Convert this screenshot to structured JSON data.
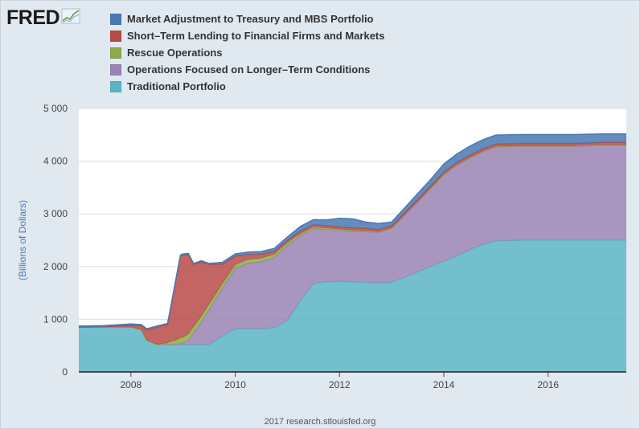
{
  "header": {
    "logo_text": "FRED",
    "logo_icon": "trend-line-icon"
  },
  "colors": {
    "background": "#e1e9f0",
    "plot_background": "#ffffff",
    "gridline": "#dddddd",
    "axis_label": "#4a7bb5"
  },
  "footer": {
    "credit": "2017 research.stlouisfed.org"
  },
  "chart_data": {
    "type": "area",
    "stacked": true,
    "title": "",
    "xlabel": "",
    "ylabel": "(Billions of Dollars)",
    "ylim": [
      0,
      5000
    ],
    "xlim": [
      2007.0,
      2017.5
    ],
    "yticks": [
      0,
      1000,
      2000,
      3000,
      4000,
      5000
    ],
    "ytick_labels": [
      "0",
      "1 000",
      "2 000",
      "3 000",
      "4 000",
      "5 000"
    ],
    "xticks": [
      2008,
      2010,
      2012,
      2014,
      2016
    ],
    "xtick_labels": [
      "2008",
      "2010",
      "2012",
      "2014",
      "2016"
    ],
    "grid": "horizontal",
    "legend_position": "top",
    "x": [
      2007.0,
      2007.5,
      2008.0,
      2008.2,
      2008.3,
      2008.5,
      2008.7,
      2008.75,
      2008.85,
      2008.95,
      2009.0,
      2009.1,
      2009.2,
      2009.35,
      2009.5,
      2009.75,
      2010.0,
      2010.25,
      2010.5,
      2010.75,
      2011.0,
      2011.25,
      2011.5,
      2011.75,
      2012.0,
      2012.25,
      2012.5,
      2012.75,
      2013.0,
      2013.25,
      2013.5,
      2013.75,
      2014.0,
      2014.25,
      2014.5,
      2014.75,
      2015.0,
      2015.5,
      2016.0,
      2016.5,
      2017.0,
      2017.5
    ],
    "series": [
      {
        "name": "Traditional Portfolio",
        "color": "#5ab4c5",
        "values": [
          850,
          850,
          850,
          800,
          600,
          520,
          520,
          520,
          520,
          520,
          520,
          520,
          520,
          520,
          520,
          680,
          820,
          820,
          820,
          840,
          980,
          1350,
          1680,
          1710,
          1720,
          1710,
          1700,
          1690,
          1700,
          1800,
          1900,
          2000,
          2100,
          2200,
          2320,
          2420,
          2490,
          2500,
          2500,
          2500,
          2500,
          2500
        ]
      },
      {
        "name": "Operations Focused on Longer-Term Conditions",
        "color": "#9a84b4",
        "values": [
          0,
          0,
          0,
          0,
          0,
          0,
          0,
          0,
          0,
          20,
          30,
          80,
          220,
          420,
          660,
          900,
          1140,
          1240,
          1270,
          1330,
          1420,
          1240,
          1040,
          990,
          960,
          960,
          960,
          960,
          1020,
          1170,
          1320,
          1480,
          1640,
          1720,
          1740,
          1760,
          1780,
          1780,
          1780,
          1780,
          1800,
          1800
        ]
      },
      {
        "name": "Rescue Operations",
        "color": "#8ea94a",
        "values": [
          0,
          0,
          0,
          0,
          0,
          0,
          30,
          60,
          80,
          110,
          110,
          120,
          120,
          120,
          110,
          95,
          80,
          75,
          70,
          65,
          55,
          40,
          30,
          30,
          30,
          20,
          20,
          10,
          10,
          10,
          10,
          10,
          10,
          10,
          10,
          10,
          10,
          10,
          10,
          10,
          10,
          10
        ]
      },
      {
        "name": "Short-Term Lending to Financial Firms and Markets",
        "color": "#b84a47",
        "values": [
          0,
          10,
          40,
          80,
          200,
          330,
          350,
          560,
          1080,
          1550,
          1560,
          1510,
          1180,
          1030,
          750,
          370,
          160,
          95,
          75,
          55,
          45,
          45,
          45,
          45,
          45,
          45,
          45,
          45,
          45,
          45,
          45,
          45,
          45,
          45,
          45,
          45,
          45,
          45,
          45,
          45,
          45,
          45
        ]
      },
      {
        "name": "Market Adjustment to Treasury and MBS Portfolio",
        "color": "#4a78b4",
        "values": [
          20,
          20,
          20,
          20,
          20,
          20,
          20,
          20,
          20,
          20,
          20,
          20,
          20,
          20,
          20,
          35,
          40,
          45,
          50,
          55,
          60,
          85,
          95,
          110,
          160,
          170,
          120,
          110,
          70,
          90,
          110,
          120,
          150,
          160,
          170,
          170,
          170,
          170,
          170,
          170,
          160,
          160
        ]
      }
    ],
    "legend_order": [
      "Market Adjustment to Treasury and MBS Portfolio",
      "Short-Term Lending to Financial Firms and Markets",
      "Rescue Operations",
      "Operations Focused on Longer-Term Conditions",
      "Traditional Portfolio"
    ],
    "legend_labels": [
      "Market Adjustment to Treasury and MBS Portfolio",
      "Short–Term Lending to Financial Firms and Markets",
      "Rescue Operations",
      "Operations Focused on Longer–Term Conditions",
      "Traditional Portfolio"
    ]
  }
}
